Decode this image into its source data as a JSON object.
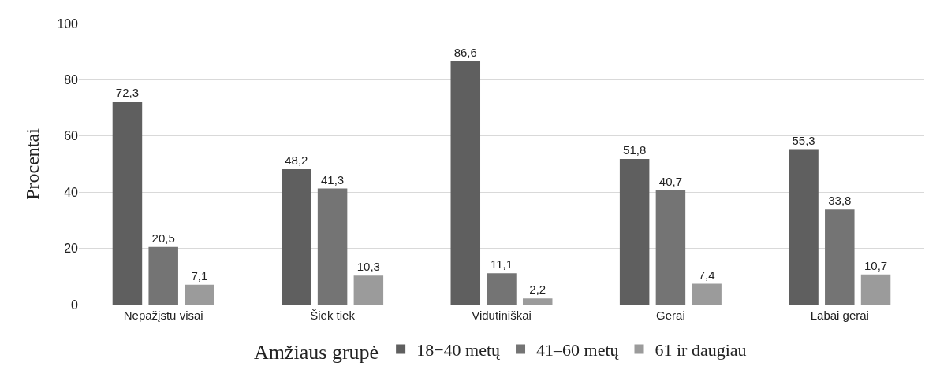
{
  "chart_data": {
    "type": "bar",
    "ylabel": "Procentai",
    "legend_title": "Amžiaus grupė",
    "categories": [
      "Nepažįstu visai",
      "Šiek tiek",
      "Vidutiniškai",
      "Gerai",
      "Labai gerai"
    ],
    "series": [
      {
        "name": "18−40 metų",
        "color": "#5f5f5f",
        "values": [
          72.3,
          48.2,
          86.6,
          51.8,
          55.3
        ],
        "value_labels": [
          "72,3",
          "48,2",
          "86,6",
          "51,8",
          "55,3"
        ]
      },
      {
        "name": "41–60 metų",
        "color": "#747474",
        "values": [
          20.5,
          41.3,
          11.1,
          40.7,
          33.8
        ],
        "value_labels": [
          "20,5",
          "41,3",
          "11,1",
          "40,7",
          "33,8"
        ]
      },
      {
        "name": "61 ir daugiau",
        "color": "#9b9b9b",
        "values": [
          7.1,
          10.3,
          2.2,
          7.4,
          10.7
        ],
        "value_labels": [
          "7,1",
          "10,3",
          "2,2",
          "7,4",
          "10,7"
        ]
      }
    ],
    "ylim": [
      0,
      100
    ],
    "yticks": [
      0,
      20,
      40,
      60,
      80,
      100
    ],
    "grid": "y",
    "legend": "bottom"
  }
}
